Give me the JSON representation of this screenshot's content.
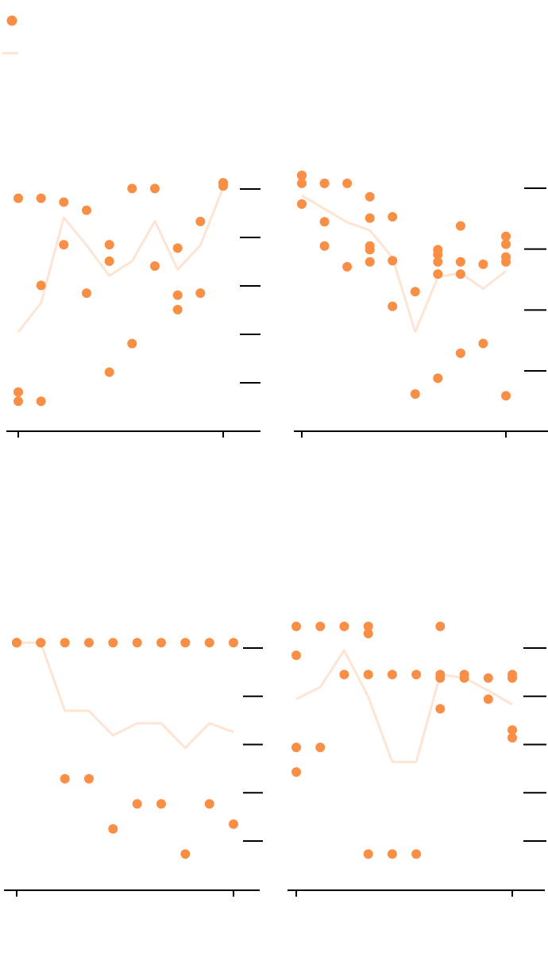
{
  "colors": {
    "point": "#f98e45",
    "line": "#fde4d3",
    "axis": "#000000",
    "background": "#ffffff"
  },
  "legend": {
    "placement": "top-left",
    "entries": [
      {
        "kind": "point",
        "label": ""
      },
      {
        "kind": "line",
        "label": ""
      }
    ]
  },
  "chart_data": [
    {
      "type": "scatter",
      "panel": "top-left",
      "xlim": [
        0.5,
        10.5
      ],
      "ylim": [
        0.4,
        5.4
      ],
      "y_axis_side": "right",
      "y_ticks": 5,
      "x_ticks": 2,
      "grid": false,
      "points": [
        {
          "x": 1,
          "y": 4.81
        },
        {
          "x": 1,
          "y": 0.81
        },
        {
          "x": 1,
          "y": 0.62
        },
        {
          "x": 2,
          "y": 4.81
        },
        {
          "x": 2,
          "y": 3.01
        },
        {
          "x": 2,
          "y": 0.62
        },
        {
          "x": 3,
          "y": 4.73
        },
        {
          "x": 3,
          "y": 3.85
        },
        {
          "x": 4,
          "y": 4.56
        },
        {
          "x": 4,
          "y": 2.85
        },
        {
          "x": 5,
          "y": 3.85
        },
        {
          "x": 5,
          "y": 3.51
        },
        {
          "x": 5,
          "y": 1.22
        },
        {
          "x": 6,
          "y": 5.01
        },
        {
          "x": 6,
          "y": 1.81
        },
        {
          "x": 7,
          "y": 5.01
        },
        {
          "x": 7,
          "y": 3.41
        },
        {
          "x": 8,
          "y": 3.78
        },
        {
          "x": 8,
          "y": 2.81
        },
        {
          "x": 8,
          "y": 2.51
        },
        {
          "x": 9,
          "y": 4.33
        },
        {
          "x": 9,
          "y": 2.85
        },
        {
          "x": 10,
          "y": 5.13
        },
        {
          "x": 10,
          "y": 5.06
        }
      ],
      "line": [
        {
          "x": 1,
          "y": 2.05
        },
        {
          "x": 2,
          "y": 2.65
        },
        {
          "x": 3,
          "y": 4.41
        },
        {
          "x": 4,
          "y": 3.84
        },
        {
          "x": 5,
          "y": 3.21
        },
        {
          "x": 6,
          "y": 3.51
        },
        {
          "x": 7,
          "y": 4.34
        },
        {
          "x": 8,
          "y": 3.34
        },
        {
          "x": 9,
          "y": 3.84
        },
        {
          "x": 10,
          "y": 5.03
        }
      ]
    },
    {
      "type": "scatter",
      "panel": "top-right",
      "xlim": [
        0.5,
        10.5
      ],
      "ylim": [
        0.4,
        4.4
      ],
      "y_axis_side": "right",
      "y_ticks": 4,
      "x_ticks": 2,
      "grid": false,
      "points": [
        {
          "x": 1,
          "y": 3.74
        },
        {
          "x": 1,
          "y": 4.08
        },
        {
          "x": 1,
          "y": 4.21
        },
        {
          "x": 1,
          "y": 3.74
        },
        {
          "x": 1,
          "y": 4.21
        },
        {
          "x": 2,
          "y": 4.08
        },
        {
          "x": 2,
          "y": 3.45
        },
        {
          "x": 2,
          "y": 3.05
        },
        {
          "x": 2,
          "y": 4.08
        },
        {
          "x": 3,
          "y": 4.08
        },
        {
          "x": 3,
          "y": 2.71
        },
        {
          "x": 4,
          "y": 3.86
        },
        {
          "x": 4,
          "y": 3.51
        },
        {
          "x": 4,
          "y": 3.05
        },
        {
          "x": 4,
          "y": 2.99
        },
        {
          "x": 4,
          "y": 2.79
        },
        {
          "x": 5,
          "y": 3.53
        },
        {
          "x": 5,
          "y": 2.81
        },
        {
          "x": 5,
          "y": 2.06
        },
        {
          "x": 6,
          "y": 2.3
        },
        {
          "x": 6,
          "y": 0.62
        },
        {
          "x": 7,
          "y": 2.99
        },
        {
          "x": 7,
          "y": 2.91
        },
        {
          "x": 7,
          "y": 2.79
        },
        {
          "x": 7,
          "y": 2.59
        },
        {
          "x": 7,
          "y": 0.88
        },
        {
          "x": 8,
          "y": 3.38
        },
        {
          "x": 8,
          "y": 2.79
        },
        {
          "x": 8,
          "y": 2.59
        },
        {
          "x": 8,
          "y": 1.29
        },
        {
          "x": 9,
          "y": 2.75
        },
        {
          "x": 9,
          "y": 1.45
        },
        {
          "x": 10,
          "y": 3.21
        },
        {
          "x": 10,
          "y": 3.08
        },
        {
          "x": 10,
          "y": 2.87
        },
        {
          "x": 10,
          "y": 2.79
        },
        {
          "x": 10,
          "y": 0.59
        }
      ],
      "line": [
        {
          "x": 1,
          "y": 3.88
        },
        {
          "x": 2,
          "y": 3.66
        },
        {
          "x": 3,
          "y": 3.44
        },
        {
          "x": 4,
          "y": 3.31
        },
        {
          "x": 5,
          "y": 2.86
        },
        {
          "x": 6,
          "y": 1.64
        },
        {
          "x": 7,
          "y": 2.54
        },
        {
          "x": 8,
          "y": 2.61
        },
        {
          "x": 9,
          "y": 2.35
        },
        {
          "x": 10,
          "y": 2.64
        }
      ]
    },
    {
      "type": "scatter",
      "panel": "bottom-left",
      "xlim": [
        0.5,
        10.5
      ],
      "ylim": [
        0.4,
        5.4
      ],
      "y_axis_side": "right",
      "y_ticks": 5,
      "x_ticks": 2,
      "grid": false,
      "points": [
        {
          "x": 1,
          "y": 5.11
        },
        {
          "x": 1,
          "y": 5.11
        },
        {
          "x": 1,
          "y": 5.11
        },
        {
          "x": 2,
          "y": 5.11
        },
        {
          "x": 2,
          "y": 5.11
        },
        {
          "x": 2,
          "y": 5.11
        },
        {
          "x": 3,
          "y": 5.11
        },
        {
          "x": 3,
          "y": 2.29
        },
        {
          "x": 4,
          "y": 5.11
        },
        {
          "x": 4,
          "y": 2.29
        },
        {
          "x": 5,
          "y": 5.11
        },
        {
          "x": 5,
          "y": 1.25
        },
        {
          "x": 6,
          "y": 5.11
        },
        {
          "x": 6,
          "y": 1.77
        },
        {
          "x": 7,
          "y": 5.11
        },
        {
          "x": 7,
          "y": 1.77
        },
        {
          "x": 8,
          "y": 5.11
        },
        {
          "x": 8,
          "y": 0.73
        },
        {
          "x": 9,
          "y": 5.11
        },
        {
          "x": 9,
          "y": 1.77
        },
        {
          "x": 10,
          "y": 5.11
        },
        {
          "x": 10,
          "y": 1.35
        }
      ],
      "line": [
        {
          "x": 1,
          "y": 5.11
        },
        {
          "x": 2,
          "y": 5.11
        },
        {
          "x": 3,
          "y": 3.7
        },
        {
          "x": 4,
          "y": 3.7
        },
        {
          "x": 5,
          "y": 3.19
        },
        {
          "x": 6,
          "y": 3.44
        },
        {
          "x": 7,
          "y": 3.44
        },
        {
          "x": 8,
          "y": 2.93
        },
        {
          "x": 9,
          "y": 3.44
        },
        {
          "x": 10,
          "y": 3.26
        }
      ]
    },
    {
      "type": "scatter",
      "panel": "bottom-right",
      "xlim": [
        0.5,
        10.5
      ],
      "ylim": [
        0.4,
        5.4
      ],
      "y_axis_side": "right",
      "y_ticks": 5,
      "x_ticks": 2,
      "grid": false,
      "points": [
        {
          "x": 1,
          "y": 5.45
        },
        {
          "x": 1,
          "y": 4.85
        },
        {
          "x": 1,
          "y": 2.94
        },
        {
          "x": 1,
          "y": 2.43
        },
        {
          "x": 2,
          "y": 5.45
        },
        {
          "x": 2,
          "y": 2.94
        },
        {
          "x": 3,
          "y": 5.45
        },
        {
          "x": 3,
          "y": 4.45
        },
        {
          "x": 4,
          "y": 5.45
        },
        {
          "x": 4,
          "y": 5.3
        },
        {
          "x": 4,
          "y": 4.45
        },
        {
          "x": 4,
          "y": 0.73
        },
        {
          "x": 5,
          "y": 4.45
        },
        {
          "x": 5,
          "y": 0.73
        },
        {
          "x": 6,
          "y": 4.45
        },
        {
          "x": 6,
          "y": 0.73
        },
        {
          "x": 7,
          "y": 5.45
        },
        {
          "x": 7,
          "y": 4.45
        },
        {
          "x": 7,
          "y": 4.38
        },
        {
          "x": 7,
          "y": 3.74
        },
        {
          "x": 8,
          "y": 4.45
        },
        {
          "x": 8,
          "y": 4.38
        },
        {
          "x": 9,
          "y": 4.38
        },
        {
          "x": 9,
          "y": 3.94
        },
        {
          "x": 10,
          "y": 4.45
        },
        {
          "x": 10,
          "y": 4.38
        },
        {
          "x": 10,
          "y": 3.3
        },
        {
          "x": 10,
          "y": 3.14
        }
      ],
      "line": [
        {
          "x": 1,
          "y": 3.94
        },
        {
          "x": 2,
          "y": 4.19
        },
        {
          "x": 3,
          "y": 4.95
        },
        {
          "x": 4,
          "y": 3.99
        },
        {
          "x": 5,
          "y": 2.64
        },
        {
          "x": 6,
          "y": 2.64
        },
        {
          "x": 7,
          "y": 4.45
        },
        {
          "x": 8,
          "y": 4.38
        },
        {
          "x": 9,
          "y": 4.12
        },
        {
          "x": 10,
          "y": 3.83
        }
      ]
    }
  ]
}
